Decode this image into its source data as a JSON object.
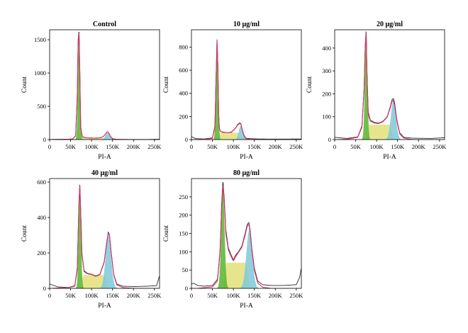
{
  "chart_data": [
    {
      "type": "area",
      "title": "Control",
      "xlabel": "PI-A",
      "ylabel": "Count",
      "xlim": [
        0,
        262144
      ],
      "ylim": [
        0,
        1650
      ],
      "x_ticks": [
        0,
        50000,
        100000,
        150000,
        200000,
        250000
      ],
      "x_tick_labels": [
        "0",
        "50K",
        "100K",
        "150K",
        "200K",
        "250K"
      ],
      "y_ticks": [
        0,
        500,
        1000,
        1500
      ],
      "y_tick_labels": [
        "0",
        "500",
        "1000",
        "1500"
      ],
      "x": [
        0,
        20000,
        40000,
        55000,
        62000,
        66000,
        68000,
        70000,
        72000,
        74000,
        78000,
        85000,
        95000,
        105000,
        115000,
        125000,
        130000,
        135000,
        138000,
        141000,
        145000,
        150000,
        160000,
        180000,
        200000,
        230000,
        262000
      ],
      "series": [
        {
          "name": "histogram",
          "values": [
            2,
            4,
            5,
            10,
            60,
            700,
            1500,
            1650,
            1050,
            200,
            45,
            30,
            25,
            22,
            24,
            35,
            60,
            100,
            120,
            100,
            50,
            15,
            4,
            3,
            2,
            2,
            5
          ]
        },
        {
          "name": "model",
          "values": [
            0,
            0,
            2,
            8,
            55,
            680,
            1480,
            1630,
            1040,
            190,
            40,
            28,
            24,
            22,
            24,
            33,
            58,
            98,
            118,
            98,
            48,
            12,
            2,
            0,
            0,
            0,
            0
          ]
        }
      ],
      "components": [
        {
          "name": "G1",
          "color": "#5fb83a",
          "center": 70000,
          "sd": 2500,
          "peak": 1630
        },
        {
          "name": "S",
          "color": "#e2e07a",
          "from": 70000,
          "to": 138000,
          "height": 22
        },
        {
          "name": "G2",
          "color": "#7fc8d8",
          "center": 138000,
          "sd": 5000,
          "peak": 100
        }
      ]
    },
    {
      "type": "area",
      "title": "10 μg/ml",
      "xlabel": "PI-A",
      "ylabel": "Count",
      "xlim": [
        0,
        262144
      ],
      "ylim": [
        0,
        950
      ],
      "x_ticks": [
        0,
        50000,
        100000,
        150000,
        200000,
        250000
      ],
      "x_tick_labels": [
        "0",
        "50K",
        "100K",
        "150K",
        "200K",
        "250K"
      ],
      "y_ticks": [
        0,
        200,
        400,
        600,
        800
      ],
      "y_tick_labels": [
        "0",
        "200",
        "400",
        "600",
        "800"
      ],
      "x": [
        0,
        10000,
        30000,
        50000,
        56000,
        59000,
        61000,
        63000,
        65000,
        67000,
        70000,
        76000,
        85000,
        95000,
        105000,
        110000,
        115000,
        118000,
        121000,
        125000,
        130000,
        140000,
        160000,
        200000,
        262000
      ],
      "series": [
        {
          "name": "histogram",
          "values": [
            25,
            8,
            5,
            15,
            120,
            600,
            870,
            650,
            200,
            90,
            70,
            65,
            60,
            65,
            100,
            130,
            145,
            135,
            90,
            40,
            12,
            8,
            5,
            4,
            5
          ]
        },
        {
          "name": "model",
          "values": [
            0,
            0,
            2,
            10,
            110,
            580,
            860,
            640,
            190,
            85,
            68,
            62,
            60,
            62,
            98,
            125,
            140,
            130,
            85,
            35,
            8,
            2,
            0,
            0,
            0
          ]
        }
      ],
      "components": [
        {
          "name": "G1",
          "color": "#5fb83a",
          "center": 61000,
          "sd": 2600,
          "peak": 850
        },
        {
          "name": "S",
          "color": "#e2e07a",
          "from": 61000,
          "to": 118000,
          "height": 60
        },
        {
          "name": "G2",
          "color": "#7fc8d8",
          "center": 118000,
          "sd": 5000,
          "peak": 120
        }
      ]
    },
    {
      "type": "area",
      "title": "20 μg/ml",
      "xlabel": "PI-A",
      "ylabel": "Count",
      "xlim": [
        0,
        262144
      ],
      "ylim": [
        0,
        480
      ],
      "x_ticks": [
        0,
        50000,
        100000,
        150000,
        200000,
        250000
      ],
      "x_tick_labels": [
        "0",
        "50K",
        "100K",
        "150K",
        "200K",
        "250K"
      ],
      "y_ticks": [
        0,
        100,
        200,
        300,
        400
      ],
      "y_tick_labels": [
        "0",
        "100",
        "200",
        "300",
        "400"
      ],
      "x": [
        0,
        10000,
        30000,
        55000,
        65000,
        70000,
        73000,
        75000,
        77000,
        80000,
        85000,
        95000,
        105000,
        115000,
        125000,
        132000,
        137000,
        140000,
        143000,
        148000,
        155000,
        165000,
        185000,
        230000,
        262000
      ],
      "series": [
        {
          "name": "histogram",
          "values": [
            10,
            8,
            5,
            12,
            60,
            220,
            420,
            480,
            300,
            120,
            85,
            75,
            72,
            80,
            100,
            140,
            175,
            180,
            160,
            90,
            30,
            10,
            6,
            5,
            8
          ]
        },
        {
          "name": "model",
          "values": [
            0,
            0,
            2,
            10,
            55,
            210,
            410,
            470,
            290,
            110,
            80,
            72,
            70,
            78,
            98,
            135,
            168,
            172,
            150,
            85,
            25,
            6,
            0,
            0,
            0
          ]
        }
      ],
      "components": [
        {
          "name": "G1",
          "color": "#5fb83a",
          "center": 75000,
          "sd": 3000,
          "peak": 460
        },
        {
          "name": "S",
          "color": "#e2e07a",
          "from": 75000,
          "to": 140000,
          "height": 65
        },
        {
          "name": "G2",
          "color": "#7fc8d8",
          "center": 140000,
          "sd": 6000,
          "peak": 170
        }
      ]
    },
    {
      "type": "area",
      "title": "40 μg/ml",
      "xlabel": "PI-A",
      "ylabel": "Count",
      "xlim": [
        0,
        262144
      ],
      "ylim": [
        0,
        620
      ],
      "x_ticks": [
        0,
        50000,
        100000,
        150000,
        200000,
        250000
      ],
      "x_tick_labels": [
        "0",
        "50K",
        "100K",
        "150K",
        "200K",
        "250K"
      ],
      "y_ticks": [
        0,
        200,
        400,
        600
      ],
      "y_tick_labels": [
        "0",
        "200",
        "400",
        "600"
      ],
      "x": [
        0,
        5000,
        20000,
        45000,
        60000,
        66000,
        70000,
        72000,
        74000,
        77000,
        82000,
        90000,
        100000,
        110000,
        120000,
        130000,
        136000,
        140000,
        143000,
        147000,
        153000,
        160000,
        175000,
        200000,
        230000,
        255000,
        262000
      ],
      "series": [
        {
          "name": "histogram",
          "values": [
            25,
            20,
            8,
            5,
            15,
            120,
            500,
            590,
            450,
            200,
            100,
            85,
            80,
            70,
            80,
            150,
            260,
            320,
            300,
            200,
            80,
            25,
            12,
            10,
            12,
            15,
            70
          ]
        },
        {
          "name": "model",
          "values": [
            0,
            0,
            2,
            4,
            12,
            110,
            490,
            580,
            440,
            190,
            95,
            82,
            78,
            68,
            78,
            145,
            255,
            315,
            295,
            195,
            75,
            20,
            4,
            0,
            0,
            0,
            0
          ]
        }
      ],
      "components": [
        {
          "name": "G1",
          "color": "#5fb83a",
          "center": 72000,
          "sd": 2800,
          "peak": 570
        },
        {
          "name": "S",
          "color": "#e2e07a",
          "from": 72000,
          "to": 140000,
          "height": 75
        },
        {
          "name": "G2",
          "color": "#7fc8d8",
          "center": 140000,
          "sd": 6500,
          "peak": 300
        }
      ]
    },
    {
      "type": "area",
      "title": "80 μg/ml",
      "xlabel": "PI-A",
      "ylabel": "Count",
      "xlim": [
        0,
        262144
      ],
      "ylim": [
        0,
        300
      ],
      "x_ticks": [
        0,
        50000,
        100000,
        150000,
        200000,
        250000
      ],
      "x_tick_labels": [
        "0",
        "50K",
        "100K",
        "150K",
        "200K",
        "250K"
      ],
      "y_ticks": [
        0,
        50,
        100,
        150,
        200,
        250
      ],
      "y_tick_labels": [
        "0",
        "50",
        "100",
        "150",
        "200",
        "250"
      ],
      "x": [
        0,
        5000,
        15000,
        30000,
        50000,
        62000,
        68000,
        72000,
        75000,
        78000,
        82000,
        88000,
        95000,
        100000,
        105000,
        112000,
        120000,
        128000,
        133000,
        137000,
        140000,
        144000,
        150000,
        158000,
        170000,
        190000,
        220000,
        250000,
        258000,
        262000
      ],
      "series": [
        {
          "name": "histogram",
          "values": [
            12,
            14,
            8,
            6,
            8,
            25,
            100,
            230,
            295,
            250,
            160,
            110,
            90,
            78,
            90,
            100,
            115,
            150,
            175,
            180,
            160,
            110,
            55,
            20,
            10,
            8,
            8,
            10,
            30,
            55
          ]
        },
        {
          "name": "model",
          "values": [
            0,
            0,
            0,
            2,
            4,
            20,
            95,
            220,
            285,
            240,
            150,
            105,
            86,
            75,
            86,
            98,
            112,
            145,
            170,
            175,
            155,
            105,
            50,
            15,
            3,
            0,
            0,
            0,
            0,
            0
          ]
        }
      ],
      "components": [
        {
          "name": "G1",
          "color": "#5fb83a",
          "center": 75000,
          "sd": 4000,
          "peak": 270
        },
        {
          "name": "S",
          "color": "#e2e07a",
          "from": 75000,
          "to": 138000,
          "height": 70
        },
        {
          "name": "G2",
          "color": "#7fc8d8",
          "center": 138000,
          "sd": 7000,
          "peak": 160
        }
      ]
    }
  ]
}
